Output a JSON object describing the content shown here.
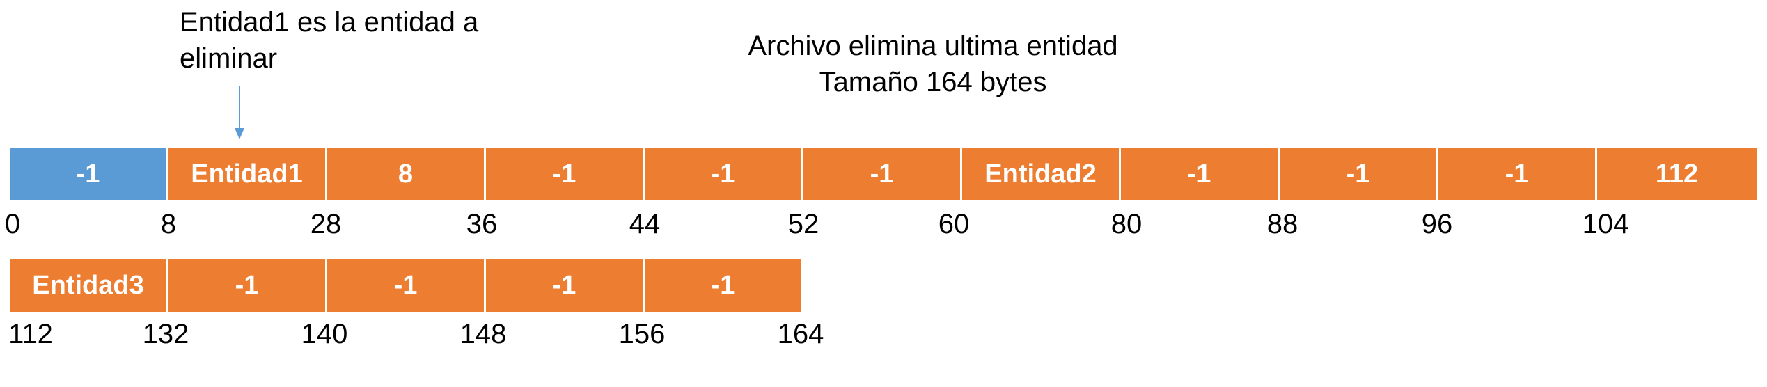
{
  "notes": {
    "entity_note_line1": "Entidad1 es la entidad a",
    "entity_note_line2": "eliminar",
    "file_note_line1": "Archivo elimina ultima entidad",
    "file_note_line2": "Tamaño 164 bytes"
  },
  "colors": {
    "header_blue": "#5B9BD5",
    "record_orange": "#ED7D31",
    "arrow_blue": "#5B9BD5"
  },
  "row1": {
    "cells": [
      "-1",
      "Entidad1",
      "8",
      "-1",
      "-1",
      "-1",
      "Entidad2",
      "-1",
      "-1",
      "-1",
      "112"
    ],
    "offsets": [
      "0",
      "8",
      "28",
      "36",
      "44",
      "52",
      "60",
      "80",
      "88",
      "96",
      "104"
    ]
  },
  "row2": {
    "cells": [
      "Entidad3",
      "-1",
      "-1",
      "-1",
      "-1"
    ],
    "offsets": [
      "112",
      "132",
      "140",
      "148",
      "156",
      "164"
    ]
  }
}
